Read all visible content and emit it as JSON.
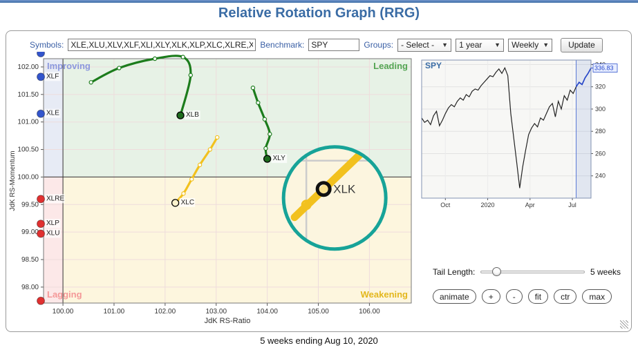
{
  "page": {
    "title": "Relative Rotation Graph (RRG)",
    "footer": "5 weeks ending Aug 10, 2020"
  },
  "toolbar": {
    "symbols_label": "Symbols:",
    "symbols_value": "XLE,XLU,XLV,XLF,XLI,XLY,XLK,XLP,XLC,XLRE,XL",
    "benchmark_label": "Benchmark:",
    "benchmark_value": "SPY",
    "groups_label": "Groups:",
    "groups_value": "- Select -",
    "period_value": "1 year",
    "interval_value": "Weekly",
    "update_label": "Update"
  },
  "controls": {
    "tail_label": "Tail Length:",
    "tail_value": "5 weeks",
    "buttons": [
      "animate",
      "+",
      "-",
      "fit",
      "ctr",
      "max"
    ]
  },
  "chart_data": [
    {
      "type": "scatter",
      "title": "Relative Rotation Graph",
      "xlabel": "JdK RS-Ratio",
      "ylabel": "JdK RS-Momentum",
      "xlim": [
        99.62,
        106.82
      ],
      "ylim": [
        97.71,
        102.15
      ],
      "xticks": [
        100,
        101,
        102,
        103,
        104,
        105,
        106
      ],
      "yticks": [
        98,
        98.5,
        99,
        99.5,
        100,
        100.5,
        101,
        101.5,
        102
      ],
      "quadrants": {
        "improving": {
          "label": "Improving",
          "color": "#8b97dd",
          "bg": "#e7ebf5"
        },
        "leading": {
          "label": "Leading",
          "color": "#53a553",
          "bg": "#e7f2e6"
        },
        "lagging": {
          "label": "Lagging",
          "color": "#f49898",
          "bg": "#fce8e8"
        },
        "weakening": {
          "label": "Weakening",
          "color": "#e3b71c",
          "bg": "#fdf6de"
        }
      },
      "series": [
        {
          "name": "XLB",
          "color": "#1c7c1c",
          "end_fill": "#1d6b1d",
          "points": [
            [
              100.55,
              101.72
            ],
            [
              101.1,
              101.98
            ],
            [
              101.8,
              102.15
            ],
            [
              102.35,
              102.18
            ],
            [
              102.5,
              101.85
            ],
            [
              102.3,
              101.12
            ]
          ]
        },
        {
          "name": "XLY",
          "color": "#1c7c1c",
          "end_fill": "#1d6b1d",
          "points": [
            [
              103.72,
              101.62
            ],
            [
              103.82,
              101.35
            ],
            [
              103.95,
              101.05
            ],
            [
              104.05,
              100.78
            ],
            [
              103.97,
              100.52
            ],
            [
              104.0,
              100.33
            ]
          ]
        },
        {
          "name": "XLC",
          "color": "#f2c11e",
          "end_fill": "#fdf3cd",
          "points": [
            [
              103.02,
              100.72
            ],
            [
              102.88,
              100.5
            ],
            [
              102.68,
              100.22
            ],
            [
              102.52,
              99.96
            ],
            [
              102.36,
              99.7
            ],
            [
              102.2,
              99.53
            ]
          ]
        },
        {
          "name": "XLK",
          "color": "#f2c11e",
          "end_fill": "#fdf3cd",
          "points": [
            [
              104.55,
              99.05
            ],
            [
              104.68,
              99.18
            ],
            [
              104.82,
              99.3
            ],
            [
              104.95,
              99.42
            ],
            [
              105.08,
              99.52
            ]
          ]
        }
      ],
      "edge_dots": [
        {
          "label": "",
          "y": 102.25,
          "color": "#3355cc"
        },
        {
          "label": "XLF",
          "y": 101.82,
          "color": "#3355cc"
        },
        {
          "label": "XLE",
          "y": 101.15,
          "color": "#3355cc"
        },
        {
          "label": "XLRE",
          "y": 99.6,
          "color": "#e03030"
        },
        {
          "label": "XLP",
          "y": 99.15,
          "color": "#e03030"
        },
        {
          "label": "XLU",
          "y": 98.97,
          "color": "#e03030"
        },
        {
          "label": "",
          "y": 97.75,
          "color": "#e03030"
        }
      ],
      "magnifier": {
        "center": [
          105.32,
          99.62
        ],
        "radius_px": 74,
        "label": "XLK",
        "ring_color": "#17a398"
      }
    },
    {
      "type": "line",
      "title": "SPY",
      "last_price": "336.83",
      "ylim": [
        220,
        344
      ],
      "yticks": [
        240,
        260,
        280,
        300,
        320,
        340
      ],
      "xticks": [
        {
          "label": "Oct",
          "pos": 0.14
        },
        {
          "label": "2020",
          "pos": 0.39
        },
        {
          "label": "Apr",
          "pos": 0.64
        },
        {
          "label": "Jul",
          "pos": 0.89
        }
      ],
      "highlight_last": 6,
      "values": [
        292,
        288,
        290,
        286,
        294,
        298,
        285,
        290,
        296,
        301,
        304,
        302,
        307,
        310,
        308,
        313,
        311,
        316,
        318,
        317,
        321,
        324,
        327,
        330,
        329,
        333,
        336,
        332,
        337,
        330,
        296,
        274,
        252,
        229,
        248,
        263,
        277,
        283,
        287,
        284,
        292,
        290,
        296,
        302,
        305,
        293,
        307,
        300,
        312,
        308,
        317,
        314,
        320,
        324,
        322,
        328,
        332,
        336.83
      ]
    }
  ]
}
